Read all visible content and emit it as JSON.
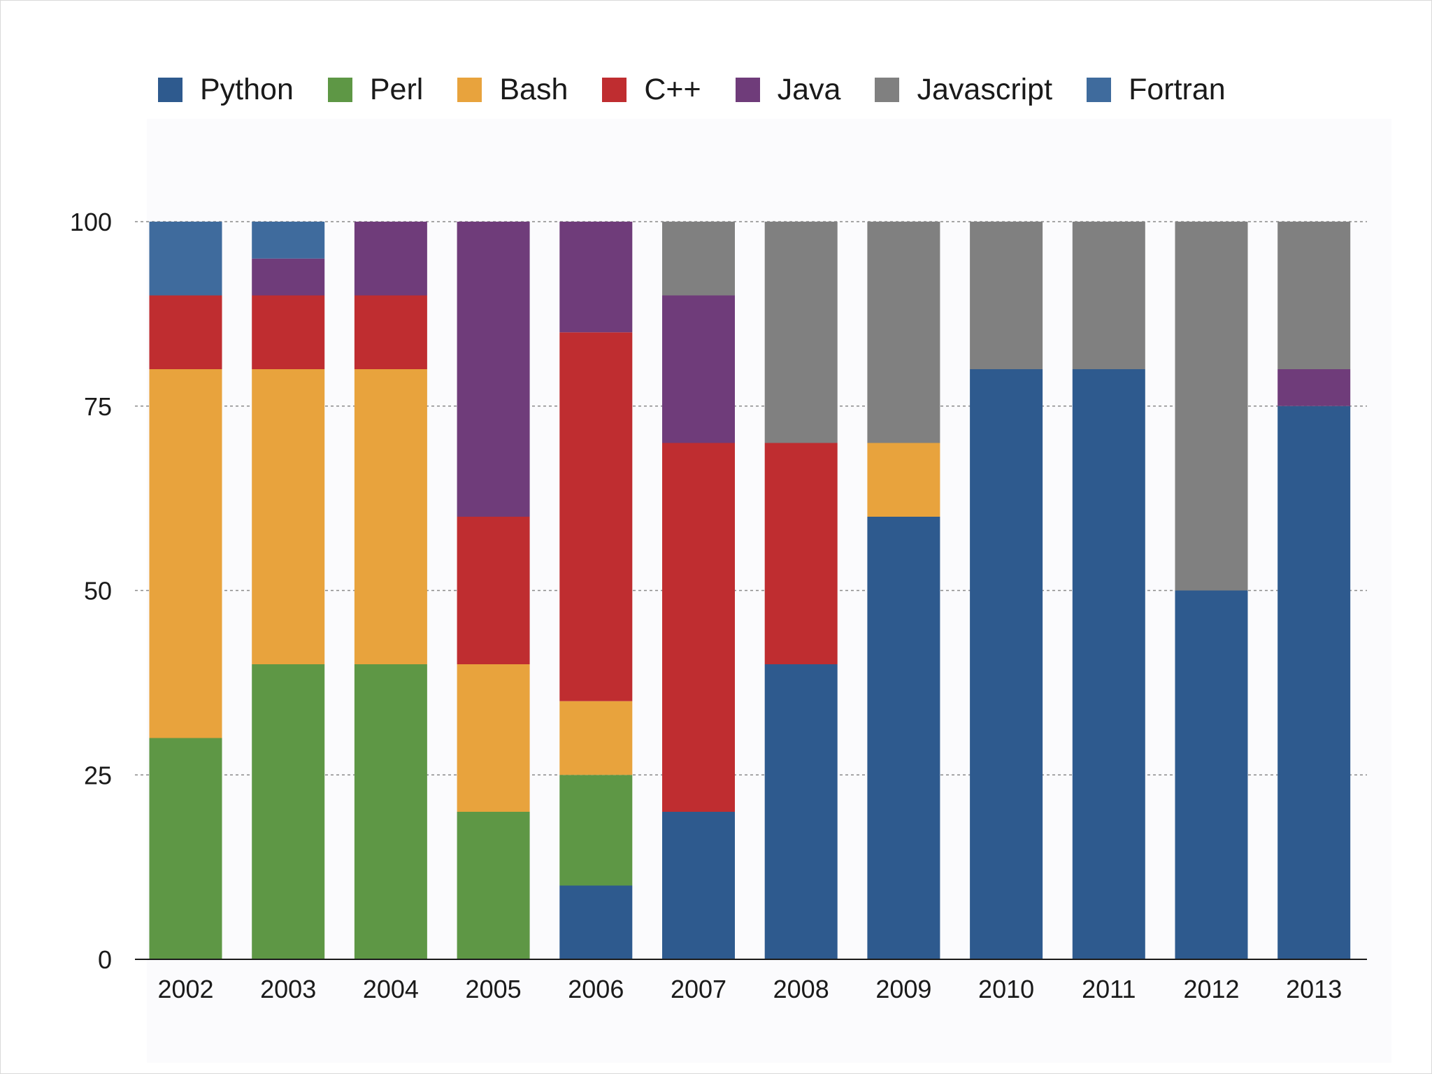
{
  "chart_data": {
    "type": "bar",
    "stacked": true,
    "categories": [
      "2002",
      "2003",
      "2004",
      "2005",
      "2006",
      "2007",
      "2008",
      "2009",
      "2010",
      "2011",
      "2012",
      "2013"
    ],
    "ylim": [
      0,
      100
    ],
    "yticks": [
      "0",
      "25",
      "50",
      "75",
      "100"
    ],
    "grid": true,
    "legend_position": "top",
    "series": [
      {
        "name": "Python",
        "color": "#2e5a8e",
        "values": [
          0,
          0,
          0,
          0,
          10,
          20,
          40,
          60,
          80,
          80,
          50,
          75
        ]
      },
      {
        "name": "Perl",
        "color": "#5e9745",
        "values": [
          30,
          40,
          40,
          20,
          15,
          0,
          0,
          0,
          0,
          0,
          0,
          0
        ]
      },
      {
        "name": "Bash",
        "color": "#e8a33d",
        "values": [
          50,
          40,
          40,
          20,
          10,
          0,
          0,
          10,
          0,
          0,
          0,
          0
        ]
      },
      {
        "name": "C++",
        "color": "#bf2d30",
        "values": [
          10,
          10,
          10,
          20,
          50,
          50,
          30,
          0,
          0,
          0,
          0,
          0
        ]
      },
      {
        "name": "Java",
        "color": "#6f3c7a",
        "values": [
          0,
          5,
          10,
          40,
          15,
          20,
          0,
          0,
          0,
          0,
          0,
          5
        ]
      },
      {
        "name": "Javascript",
        "color": "#808080",
        "values": [
          0,
          0,
          0,
          0,
          0,
          10,
          30,
          30,
          20,
          20,
          50,
          20
        ]
      },
      {
        "name": "Fortran",
        "color": "#3f6b9d",
        "values": [
          10,
          5,
          0,
          0,
          0,
          0,
          0,
          0,
          0,
          0,
          0,
          0
        ]
      }
    ]
  }
}
